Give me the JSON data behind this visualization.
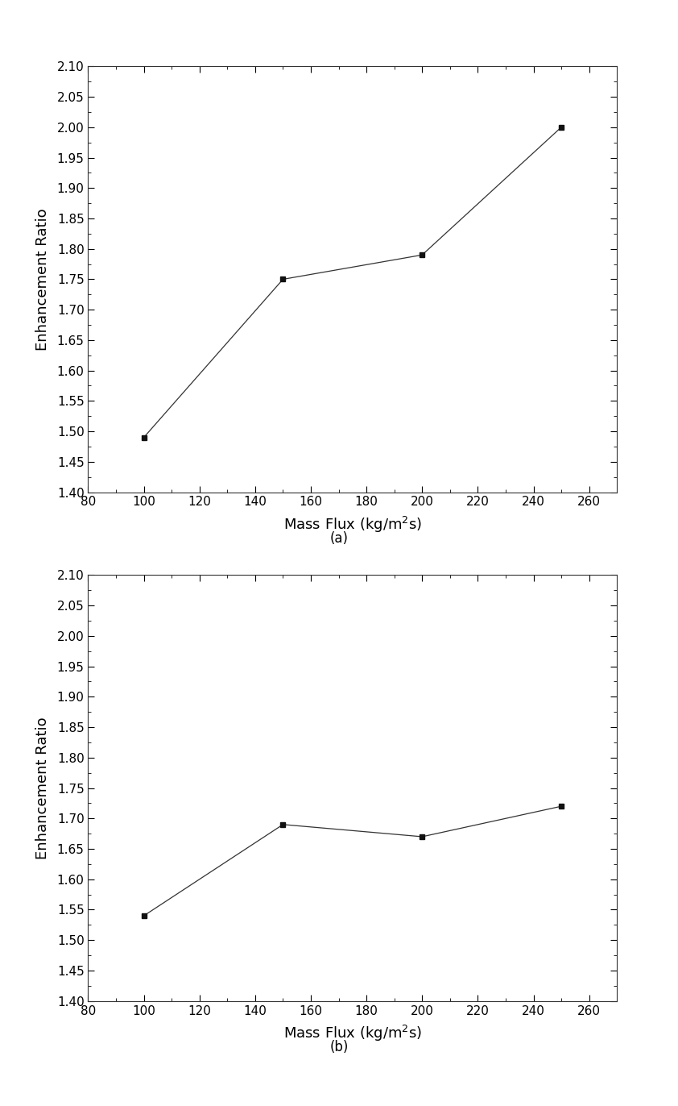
{
  "plot_a": {
    "x": [
      100,
      150,
      200,
      250
    ],
    "y": [
      1.49,
      1.75,
      1.79,
      2.0
    ],
    "xlabel": "Mass Flux (kg/m$^2$s)",
    "ylabel": "Enhancement Ratio",
    "xlim": [
      80,
      270
    ],
    "ylim": [
      1.4,
      2.1
    ],
    "xticks": [
      80,
      100,
      120,
      140,
      160,
      180,
      200,
      220,
      240,
      260
    ],
    "yticks": [
      1.4,
      1.45,
      1.5,
      1.55,
      1.6,
      1.65,
      1.7,
      1.75,
      1.8,
      1.85,
      1.9,
      1.95,
      2.0,
      2.05,
      2.1
    ],
    "label": "(a)"
  },
  "plot_b": {
    "x": [
      100,
      150,
      200,
      250
    ],
    "y": [
      1.54,
      1.69,
      1.67,
      1.72
    ],
    "xlabel": "Mass Flux (kg/m$^2$s)",
    "ylabel": "Enhancement Ratio",
    "xlim": [
      80,
      270
    ],
    "ylim": [
      1.4,
      2.1
    ],
    "xticks": [
      80,
      100,
      120,
      140,
      160,
      180,
      200,
      220,
      240,
      260
    ],
    "yticks": [
      1.4,
      1.45,
      1.5,
      1.55,
      1.6,
      1.65,
      1.7,
      1.75,
      1.8,
      1.85,
      1.9,
      1.95,
      2.0,
      2.05,
      2.1
    ],
    "label": "(b)"
  },
  "line_color": "#333333",
  "marker": "s",
  "marker_size": 5,
  "marker_facecolor": "#111111",
  "marker_edgecolor": "#111111",
  "line_width": 0.9,
  "tick_fontsize": 11,
  "label_fontsize": 13,
  "sublabel_fontsize": 12,
  "background_color": "#ffffff",
  "figure_size": [
    8.42,
    13.72
  ],
  "dpi": 100
}
